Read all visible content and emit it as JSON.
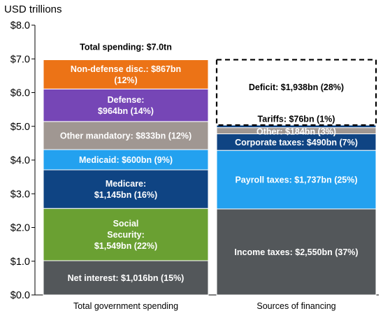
{
  "chart_data": {
    "type": "bar",
    "stacked": true,
    "unit_label": "USD trillions",
    "ylim": [
      0,
      8
    ],
    "yticks": [
      {
        "value": 0,
        "label": "$0.0"
      },
      {
        "value": 1,
        "label": "$1.0"
      },
      {
        "value": 2,
        "label": "$2.0"
      },
      {
        "value": 3,
        "label": "$3.0"
      },
      {
        "value": 4,
        "label": "$4.0"
      },
      {
        "value": 5,
        "label": "$5.0"
      },
      {
        "value": 6,
        "label": "$6.0"
      },
      {
        "value": 7,
        "label": "$7.0"
      },
      {
        "value": 8,
        "label": "$8.0"
      }
    ],
    "grid": false,
    "bars": [
      {
        "category": "Total government spending",
        "total_label": "Total spending: $7.0tn",
        "segments": [
          {
            "value": 1.016,
            "label": [
              "Net interest: $1,016bn (15%)"
            ],
            "color": "#53575a",
            "text": "light"
          },
          {
            "value": 1.549,
            "label": [
              "Social",
              "Security:",
              "$1,549bn (22%)"
            ],
            "color": "#6aa032",
            "text": "light"
          },
          {
            "value": 1.145,
            "label": [
              "Medicare:",
              "$1,145bn (16%)"
            ],
            "color": "#0f4483",
            "text": "light"
          },
          {
            "value": 0.6,
            "label": [
              "Medicaid: $600bn (9%)"
            ],
            "color": "#23a1ef",
            "text": "light"
          },
          {
            "value": 0.833,
            "label": [
              "Other mandatory: $833bn (12%)"
            ],
            "color": "#a09792",
            "text": "light"
          },
          {
            "value": 0.964,
            "label": [
              "Defense:",
              "$964bn (14%)"
            ],
            "color": "#7646b6",
            "text": "light"
          },
          {
            "value": 0.867,
            "label": [
              "Non-defense disc.: $867bn",
              "(12%)"
            ],
            "color": "#ec7316",
            "text": "light"
          }
        ]
      },
      {
        "category": "Sources of financing",
        "segments": [
          {
            "value": 2.55,
            "label": [
              "Income taxes: $2,550bn (37%)"
            ],
            "color": "#53575a",
            "text": "light"
          },
          {
            "value": 1.737,
            "label": [
              "Payroll taxes: $1,737bn (25%)"
            ],
            "color": "#23a1ef",
            "text": "light"
          },
          {
            "value": 0.49,
            "label": [
              "Corporate taxes: $490bn (7%)"
            ],
            "color": "#0f4483",
            "text": "light"
          },
          {
            "value": 0.184,
            "label": [
              "Other: $184bn (3%)"
            ],
            "color": "#a09792",
            "text": "light"
          },
          {
            "value": 0.076,
            "label": [
              "Tariffs: $76bn (1%)"
            ],
            "color": "#0f4483",
            "text": "dark"
          },
          {
            "value": 1.938,
            "label": [
              "Deficit: $1,938bn (28%)"
            ],
            "color": "none",
            "dashed": true,
            "text": "dark"
          }
        ]
      }
    ]
  }
}
